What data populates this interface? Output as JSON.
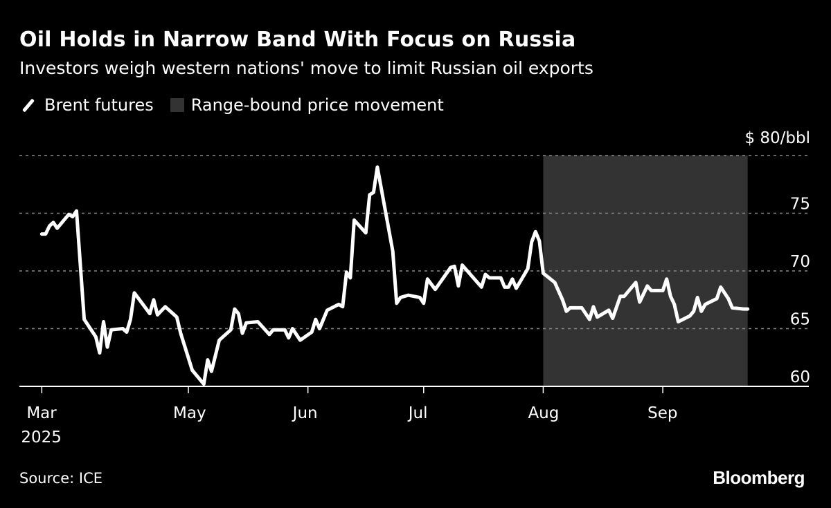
{
  "header": {
    "title": "Oil Holds in Narrow Band With Focus on Russia",
    "subtitle": "Investors weigh western nations' move to limit Russian oil exports"
  },
  "legend": [
    {
      "label": "Brent futures",
      "color": "#ffffff",
      "icon": "line-icon"
    },
    {
      "label": "Range-bound price movement",
      "color": "#333333",
      "icon": "shaded-box-icon"
    }
  ],
  "footer": {
    "source": "Source: ICE",
    "logo": "Bloomberg"
  },
  "chart_data": {
    "type": "line",
    "title": "Oil Holds in Narrow Band With Focus on Russia",
    "subtitle": "Investors weigh western nations' move to limit Russian oil exports",
    "y_unit_label": "$ 80/bbl",
    "ylim": [
      60,
      80
    ],
    "y_ticks": [
      {
        "value": 80,
        "label": "$ 80/bbl"
      },
      {
        "value": 75,
        "label": "75"
      },
      {
        "value": 70,
        "label": "70"
      },
      {
        "value": 65,
        "label": "65"
      },
      {
        "value": 60,
        "label": "60"
      }
    ],
    "x_ticks": [
      {
        "date": "2025-03-24",
        "label": "Mar",
        "sublabel": "2025"
      },
      {
        "date": "2025-05-01",
        "label": "May"
      },
      {
        "date": "2025-06-01",
        "label": "Jun"
      },
      {
        "date": "2025-07-01",
        "label": "Jul"
      },
      {
        "date": "2025-08-01",
        "label": "Aug"
      },
      {
        "date": "2025-09-01",
        "label": "Sep"
      }
    ],
    "grid": "horizontal dashed",
    "legend_position": "top-left",
    "shaded_region": {
      "name": "Range-bound price movement",
      "start": "2025-08-01",
      "end": "2025-09-23",
      "color": "#333333"
    },
    "series": [
      {
        "name": "Brent futures",
        "color": "#ffffff",
        "points": [
          [
            "2025-03-24",
            73.2
          ],
          [
            "2025-03-25",
            73.2
          ],
          [
            "2025-03-26",
            73.9
          ],
          [
            "2025-03-27",
            74.2
          ],
          [
            "2025-03-28",
            73.7
          ],
          [
            "2025-03-31",
            74.9
          ],
          [
            "2025-04-01",
            74.7
          ],
          [
            "2025-04-02",
            75.2
          ],
          [
            "2025-04-04",
            65.8
          ],
          [
            "2025-04-07",
            64.3
          ],
          [
            "2025-04-08",
            62.9
          ],
          [
            "2025-04-09",
            65.6
          ],
          [
            "2025-04-10",
            63.4
          ],
          [
            "2025-04-11",
            64.9
          ],
          [
            "2025-04-14",
            65.0
          ],
          [
            "2025-04-15",
            64.7
          ],
          [
            "2025-04-16",
            65.8
          ],
          [
            "2025-04-17",
            68.1
          ],
          [
            "2025-04-21",
            66.3
          ],
          [
            "2025-04-22",
            67.5
          ],
          [
            "2025-04-23",
            66.2
          ],
          [
            "2025-04-25",
            66.9
          ],
          [
            "2025-04-28",
            66.0
          ],
          [
            "2025-04-29",
            64.6
          ],
          [
            "2025-05-02",
            61.4
          ],
          [
            "2025-05-05",
            60.2
          ],
          [
            "2025-05-06",
            62.3
          ],
          [
            "2025-05-07",
            61.3
          ],
          [
            "2025-05-09",
            64.0
          ],
          [
            "2025-05-12",
            64.9
          ],
          [
            "2025-05-13",
            66.7
          ],
          [
            "2025-05-14",
            66.3
          ],
          [
            "2025-05-15",
            64.6
          ],
          [
            "2025-05-16",
            65.5
          ],
          [
            "2025-05-19",
            65.6
          ],
          [
            "2025-05-22",
            64.5
          ],
          [
            "2025-05-23",
            64.9
          ],
          [
            "2025-05-26",
            64.9
          ],
          [
            "2025-05-27",
            64.2
          ],
          [
            "2025-05-28",
            65.0
          ],
          [
            "2025-05-30",
            64.0
          ],
          [
            "2025-06-02",
            64.7
          ],
          [
            "2025-06-03",
            65.8
          ],
          [
            "2025-06-04",
            65.0
          ],
          [
            "2025-06-06",
            66.6
          ],
          [
            "2025-06-09",
            67.1
          ],
          [
            "2025-06-10",
            66.9
          ],
          [
            "2025-06-11",
            69.9
          ],
          [
            "2025-06-12",
            69.4
          ],
          [
            "2025-06-13",
            74.4
          ],
          [
            "2025-06-16",
            73.3
          ],
          [
            "2025-06-17",
            76.6
          ],
          [
            "2025-06-18",
            76.8
          ],
          [
            "2025-06-19",
            79.0
          ],
          [
            "2025-06-23",
            71.7
          ],
          [
            "2025-06-24",
            67.2
          ],
          [
            "2025-06-25",
            67.7
          ],
          [
            "2025-06-27",
            67.9
          ],
          [
            "2025-06-30",
            67.7
          ],
          [
            "2025-07-01",
            67.2
          ],
          [
            "2025-07-02",
            69.3
          ],
          [
            "2025-07-04",
            68.4
          ],
          [
            "2025-07-08",
            70.3
          ],
          [
            "2025-07-09",
            70.4
          ],
          [
            "2025-07-10",
            68.7
          ],
          [
            "2025-07-11",
            70.5
          ],
          [
            "2025-07-16",
            68.6
          ],
          [
            "2025-07-17",
            69.7
          ],
          [
            "2025-07-18",
            69.4
          ],
          [
            "2025-07-21",
            69.4
          ],
          [
            "2025-07-22",
            68.6
          ],
          [
            "2025-07-23",
            68.6
          ],
          [
            "2025-07-24",
            69.3
          ],
          [
            "2025-07-25",
            68.5
          ],
          [
            "2025-07-28",
            70.2
          ],
          [
            "2025-07-29",
            72.5
          ],
          [
            "2025-07-30",
            73.4
          ],
          [
            "2025-07-31",
            72.6
          ],
          [
            "2025-08-01",
            69.8
          ],
          [
            "2025-08-04",
            69.0
          ],
          [
            "2025-08-06",
            67.5
          ],
          [
            "2025-08-07",
            66.5
          ],
          [
            "2025-08-08",
            66.8
          ],
          [
            "2025-08-11",
            66.8
          ],
          [
            "2025-08-13",
            65.8
          ],
          [
            "2025-08-14",
            66.9
          ],
          [
            "2025-08-15",
            66.0
          ],
          [
            "2025-08-18",
            66.6
          ],
          [
            "2025-08-19",
            65.9
          ],
          [
            "2025-08-21",
            67.8
          ],
          [
            "2025-08-22",
            67.8
          ],
          [
            "2025-08-25",
            69.0
          ],
          [
            "2025-08-26",
            67.3
          ],
          [
            "2025-08-28",
            68.7
          ],
          [
            "2025-08-29",
            68.3
          ],
          [
            "2025-09-01",
            68.3
          ],
          [
            "2025-09-02",
            69.3
          ],
          [
            "2025-09-03",
            67.8
          ],
          [
            "2025-09-04",
            67.1
          ],
          [
            "2025-09-05",
            65.6
          ],
          [
            "2025-09-08",
            66.1
          ],
          [
            "2025-09-09",
            66.5
          ],
          [
            "2025-09-10",
            67.7
          ],
          [
            "2025-09-11",
            66.5
          ],
          [
            "2025-09-12",
            67.1
          ],
          [
            "2025-09-15",
            67.6
          ],
          [
            "2025-09-16",
            68.6
          ],
          [
            "2025-09-18",
            67.6
          ],
          [
            "2025-09-19",
            66.8
          ],
          [
            "2025-09-22",
            66.7
          ],
          [
            "2025-09-23",
            66.7
          ]
        ]
      }
    ]
  }
}
